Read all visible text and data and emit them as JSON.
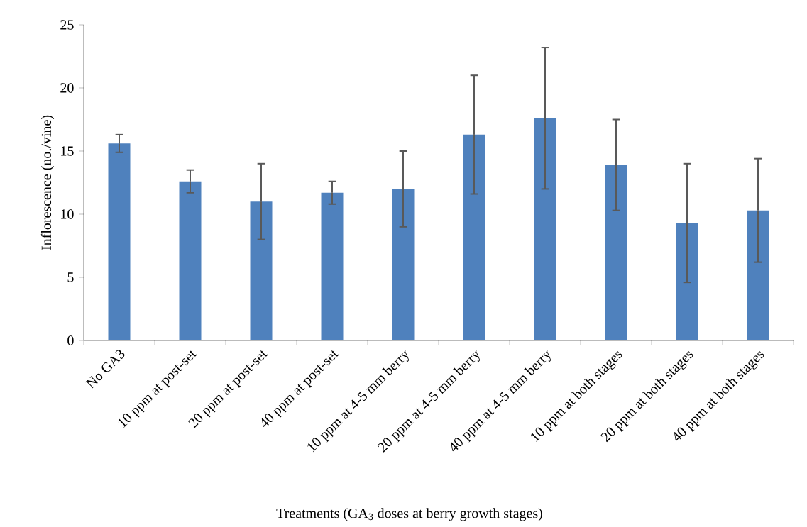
{
  "chart_data": {
    "type": "bar",
    "xlabel": "Treatments (GA$_{3}$ doses at berry growth stages)",
    "ylabel": "Inflorescence (no./vine)",
    "categories": [
      "No GA3",
      "10 ppm at post-set",
      "20 ppm at post-set",
      "40 ppm at post-set",
      "10 ppm at 4-5 mm berry",
      "20 ppm at  4-5 mm berry",
      "40 ppm at  4-5 mm berry",
      "10 ppm at both stages",
      "20 ppm at both stages",
      "40 ppm at both stages"
    ],
    "values": [
      15.6,
      12.6,
      11.0,
      11.7,
      12.0,
      16.3,
      17.6,
      13.9,
      9.3,
      10.3
    ],
    "errors": [
      0.7,
      0.9,
      3.0,
      0.9,
      3.0,
      4.7,
      5.6,
      3.6,
      4.7,
      4.1
    ],
    "color": "#4f81bd",
    "ylim": [
      0,
      25
    ],
    "yticks": [
      0,
      5,
      10,
      15,
      20,
      25
    ]
  }
}
